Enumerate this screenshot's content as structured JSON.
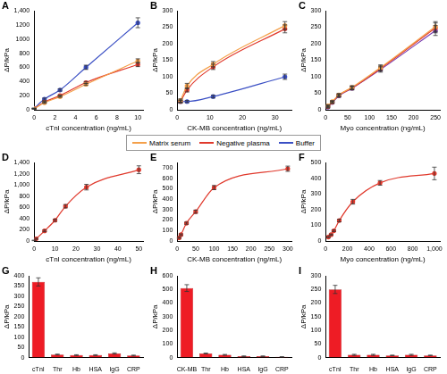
{
  "chart_data": [
    {
      "panel": "A",
      "type": "line",
      "marker": "circle",
      "legend": "bottom",
      "grid": false,
      "x_label": "cTnI concentration (ng/mL)",
      "y_label": "ΔP/kPa",
      "x": [
        0,
        1,
        2.5,
        5,
        10
      ],
      "xlim": [
        0,
        10.5
      ],
      "xticks": [
        0,
        2,
        4,
        6,
        8,
        10
      ],
      "ylim": [
        0,
        1400
      ],
      "yticks": [
        0,
        200,
        400,
        600,
        800,
        1000,
        1200,
        {
          "value": 1400,
          "label": "1,400"
        }
      ],
      "series": [
        {
          "name": "Matrix serum",
          "color": "#f4a04a",
          "values": [
            15,
            100,
            185,
            360,
            690
          ],
          "errors": [
            5,
            10,
            10,
            15,
            30
          ]
        },
        {
          "name": "Negative plasma",
          "color": "#e0392c",
          "values": [
            15,
            110,
            200,
            385,
            640
          ],
          "errors": [
            5,
            10,
            10,
            15,
            30
          ]
        },
        {
          "name": "Buffer",
          "color": "#3a4fc4",
          "values": [
            20,
            150,
            280,
            600,
            1230
          ],
          "errors": [
            5,
            15,
            15,
            30,
            70
          ]
        }
      ]
    },
    {
      "panel": "B",
      "type": "line",
      "marker": "circle",
      "grid": false,
      "x_label": "CK-MB concentration (ng/mL)",
      "y_label": "ΔP/kPa",
      "x": [
        1,
        3,
        11,
        33
      ],
      "xlim": [
        0,
        35
      ],
      "xticks": [
        0,
        10,
        20,
        30
      ],
      "ylim": [
        0,
        300
      ],
      "yticks": [
        0,
        50,
        100,
        150,
        200,
        250,
        300
      ],
      "series": [
        {
          "name": "Matrix serum",
          "color": "#f4a04a",
          "values": [
            28,
            72,
            138,
            255
          ],
          "errors": [
            5,
            8,
            8,
            12
          ]
        },
        {
          "name": "Negative plasma",
          "color": "#e0392c",
          "values": [
            25,
            60,
            130,
            245
          ],
          "errors": [
            5,
            6,
            8,
            12
          ]
        },
        {
          "name": "Buffer",
          "color": "#3a4fc4",
          "values": [
            25,
            25,
            40,
            100
          ],
          "errors": [
            3,
            3,
            4,
            8
          ]
        }
      ]
    },
    {
      "panel": "C",
      "type": "line",
      "marker": "circle",
      "grid": false,
      "x_label": "Myo concentration (ng/mL)",
      "y_label": "ΔP/kPa",
      "x": [
        5,
        15,
        30,
        60,
        125,
        250
      ],
      "xlim": [
        0,
        260
      ],
      "xticks": [
        0,
        50,
        100,
        150,
        200,
        250
      ],
      "ylim": [
        0,
        300
      ],
      "yticks": [
        0,
        50,
        100,
        150,
        200,
        250,
        300
      ],
      "series": [
        {
          "name": "Matrix serum",
          "color": "#f4a04a",
          "values": [
            12,
            25,
            45,
            68,
            128,
            252
          ],
          "errors": [
            3,
            3,
            4,
            5,
            8,
            15
          ]
        },
        {
          "name": "Negative plasma",
          "color": "#e0392c",
          "values": [
            10,
            23,
            44,
            66,
            125,
            248
          ],
          "errors": [
            3,
            3,
            4,
            5,
            8,
            15
          ]
        },
        {
          "name": "Buffer",
          "color": "#7a3fb0",
          "values": [
            8,
            22,
            42,
            65,
            122,
            240
          ],
          "errors": [
            3,
            3,
            4,
            5,
            8,
            15
          ]
        }
      ]
    },
    {
      "panel": "D",
      "type": "line",
      "marker": "circle",
      "grid": false,
      "color": "#e0392c",
      "x_label": "cTnI concentration (ng/mL)",
      "y_label": "ΔP/kPa",
      "x": [
        0,
        1,
        5,
        10,
        15,
        25,
        50
      ],
      "values": [
        10,
        40,
        180,
        370,
        620,
        960,
        1270
      ],
      "errors": [
        5,
        10,
        15,
        20,
        30,
        50,
        70
      ],
      "xlim": [
        0,
        52
      ],
      "xticks": [
        0,
        10,
        20,
        30,
        40,
        50
      ],
      "ylim": [
        0,
        1400
      ],
      "yticks": [
        0,
        200,
        400,
        600,
        800,
        {
          "value": 1000,
          "label": "1,000"
        },
        {
          "value": 1200,
          "label": "1,200"
        },
        {
          "value": 1400,
          "label": "1,400"
        }
      ]
    },
    {
      "panel": "E",
      "type": "line",
      "marker": "circle",
      "grid": false,
      "color": "#e0392c",
      "x_label": "CK-MB concentration (ng/mL)",
      "y_label": "ΔP/kPa",
      "x": [
        5,
        10,
        25,
        50,
        100,
        300
      ],
      "values": [
        30,
        60,
        170,
        280,
        510,
        690
      ],
      "errors": [
        5,
        8,
        10,
        15,
        20,
        25
      ],
      "xlim": [
        0,
        310
      ],
      "xticks": [
        0,
        50,
        100,
        150,
        200,
        250,
        300
      ],
      "ylim": [
        0,
        750
      ],
      "yticks": [
        0,
        100,
        200,
        300,
        400,
        500,
        600,
        700
      ]
    },
    {
      "panel": "F",
      "type": "line",
      "marker": "circle",
      "grid": false,
      "color": "#e0392c",
      "x_label": "Myo concentration (ng/mL)",
      "y_label": "ΔP/kPa",
      "x": [
        25,
        50,
        75,
        125,
        250,
        500,
        1000
      ],
      "values": [
        25,
        40,
        65,
        130,
        250,
        370,
        430
      ],
      "errors": [
        3,
        4,
        5,
        8,
        15,
        15,
        40
      ],
      "xlim": [
        0,
        1050
      ],
      "xticks": [
        0,
        200,
        400,
        600,
        800,
        {
          "value": 1000,
          "label": "1,000"
        }
      ],
      "ylim": [
        0,
        500
      ],
      "yticks": [
        0,
        100,
        200,
        300,
        400,
        500
      ]
    },
    {
      "panel": "G",
      "type": "bar",
      "grid": false,
      "color": "#ee1c25",
      "y_label": "ΔP/kPa",
      "categories": [
        "cTnI",
        "Thr",
        "Hb",
        "HSA",
        "IgG",
        "CRP"
      ],
      "values": [
        370,
        15,
        12,
        12,
        20,
        10
      ],
      "errors": [
        20,
        2,
        2,
        2,
        3,
        2
      ],
      "ylim": [
        0,
        400
      ],
      "yticks": [
        0,
        50,
        100,
        150,
        200,
        250,
        300,
        350,
        400
      ]
    },
    {
      "panel": "H",
      "type": "bar",
      "grid": false,
      "color": "#ee1c25",
      "y_label": "ΔP/kPa",
      "categories": [
        "CK-MB",
        "Thr",
        "Hb",
        "HSA",
        "IgG",
        "CRP"
      ],
      "values": [
        510,
        30,
        20,
        10,
        10,
        5
      ],
      "errors": [
        25,
        3,
        3,
        2,
        2,
        1
      ],
      "ylim": [
        0,
        600
      ],
      "yticks": [
        0,
        100,
        200,
        300,
        400,
        500,
        600
      ]
    },
    {
      "panel": "I",
      "type": "bar",
      "grid": false,
      "color": "#ee1c25",
      "y_label": "ΔP/kPa",
      "categories": [
        "cTnI",
        "Thr",
        "Hb",
        "HSA",
        "IgG",
        "CRP"
      ],
      "values": [
        250,
        10,
        10,
        8,
        10,
        8
      ],
      "errors": [
        15,
        2,
        2,
        1,
        2,
        1
      ],
      "ylim": [
        0,
        300
      ],
      "yticks": [
        0,
        50,
        100,
        150,
        200,
        250,
        300
      ]
    }
  ]
}
